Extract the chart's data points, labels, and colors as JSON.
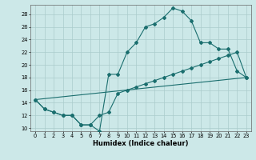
{
  "xlabel": "Humidex (Indice chaleur)",
  "xlim_min": -0.5,
  "xlim_max": 23.5,
  "ylim_min": 9.5,
  "ylim_max": 29.5,
  "xticks": [
    0,
    1,
    2,
    3,
    4,
    5,
    6,
    7,
    8,
    9,
    10,
    11,
    12,
    13,
    14,
    15,
    16,
    17,
    18,
    19,
    20,
    21,
    22,
    23
  ],
  "yticks": [
    10,
    12,
    14,
    16,
    18,
    20,
    22,
    24,
    26,
    28
  ],
  "background_color": "#cce8e8",
  "grid_color": "#aacccc",
  "line_color": "#1a6e6e",
  "line1_x": [
    0,
    1,
    2,
    3,
    4,
    5,
    6,
    7,
    8,
    9,
    10,
    11,
    12,
    13,
    14,
    15,
    16,
    17,
    18,
    19,
    20,
    21,
    22,
    23
  ],
  "line1_y": [
    14.5,
    13,
    12.5,
    12,
    12,
    10.5,
    10.5,
    9.5,
    18.5,
    18.5,
    22,
    23.5,
    26,
    26.5,
    27.5,
    29,
    28.5,
    27,
    23.5,
    23.5,
    22.5,
    22.5,
    19,
    18
  ],
  "line2_x": [
    0,
    1,
    2,
    3,
    4,
    5,
    6,
    7,
    8,
    9,
    10,
    11,
    12,
    13,
    14,
    15,
    16,
    17,
    18,
    19,
    20,
    21,
    22,
    23
  ],
  "line2_y": [
    14.5,
    13,
    12.5,
    12,
    12,
    10.5,
    10.5,
    12,
    12.5,
    15.5,
    16,
    16.5,
    17,
    17.5,
    18,
    18.5,
    19,
    19.5,
    20,
    20.5,
    21,
    21.5,
    22,
    18
  ],
  "line3_x": [
    0,
    23
  ],
  "line3_y": [
    14.5,
    18
  ],
  "tick_fontsize": 4.8,
  "xlabel_fontsize": 6.0
}
